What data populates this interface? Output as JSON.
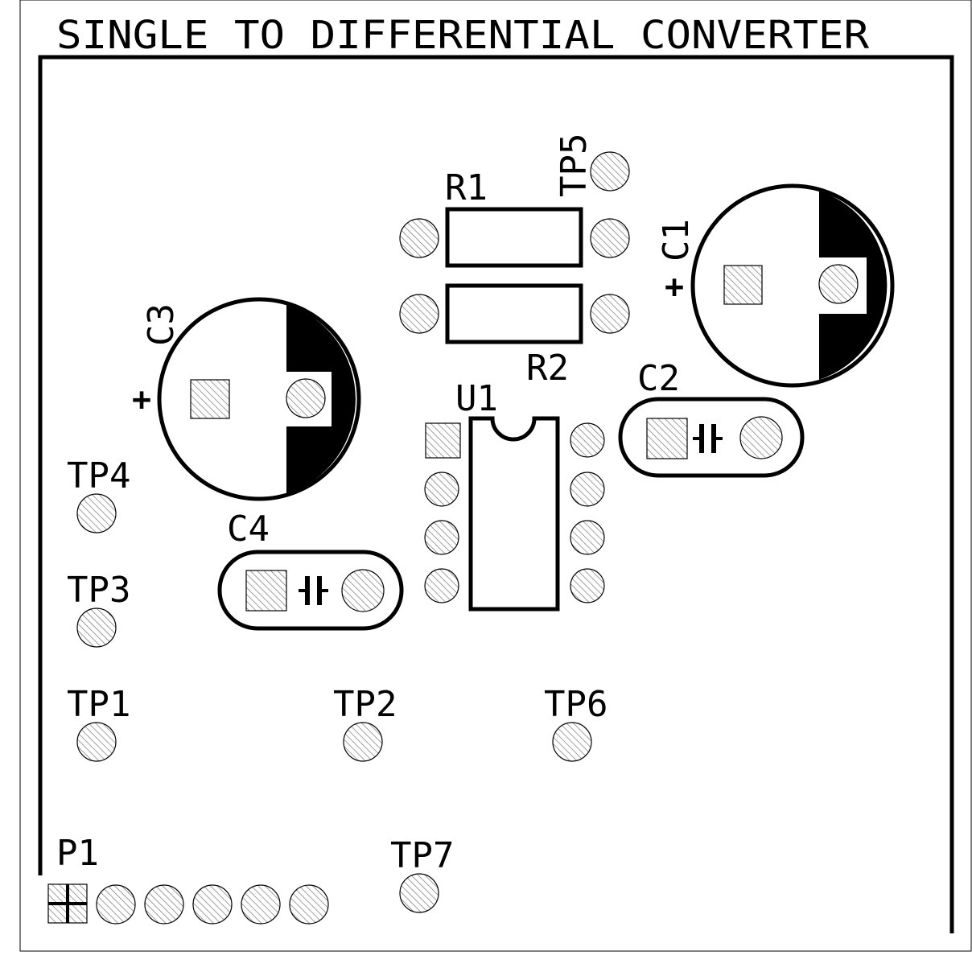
{
  "board": {
    "title": "SINGLE TO DIFFERENTIAL CONVERTER",
    "colors": {
      "silkscreen": "#000000",
      "background": "#ffffff",
      "pad_hatch": "#7a7a7a"
    }
  },
  "components": {
    "r1": {
      "ref": "R1",
      "type": "resistor"
    },
    "r2": {
      "ref": "R2",
      "type": "resistor"
    },
    "c1": {
      "ref": "C1",
      "type": "electrolytic capacitor",
      "polarity": "+"
    },
    "c2": {
      "ref": "C2",
      "type": "ceramic capacitor"
    },
    "c3": {
      "ref": "C3",
      "type": "electrolytic capacitor",
      "polarity": "+"
    },
    "c4": {
      "ref": "C4",
      "type": "ceramic capacitor"
    },
    "u1": {
      "ref": "U1",
      "type": "DIP-8 IC"
    },
    "p1": {
      "ref": "P1",
      "type": "6-pin header"
    }
  },
  "test_points": {
    "tp1": "TP1",
    "tp2": "TP2",
    "tp3": "TP3",
    "tp4": "TP4",
    "tp5": "TP5",
    "tp6": "TP6",
    "tp7": "TP7"
  }
}
